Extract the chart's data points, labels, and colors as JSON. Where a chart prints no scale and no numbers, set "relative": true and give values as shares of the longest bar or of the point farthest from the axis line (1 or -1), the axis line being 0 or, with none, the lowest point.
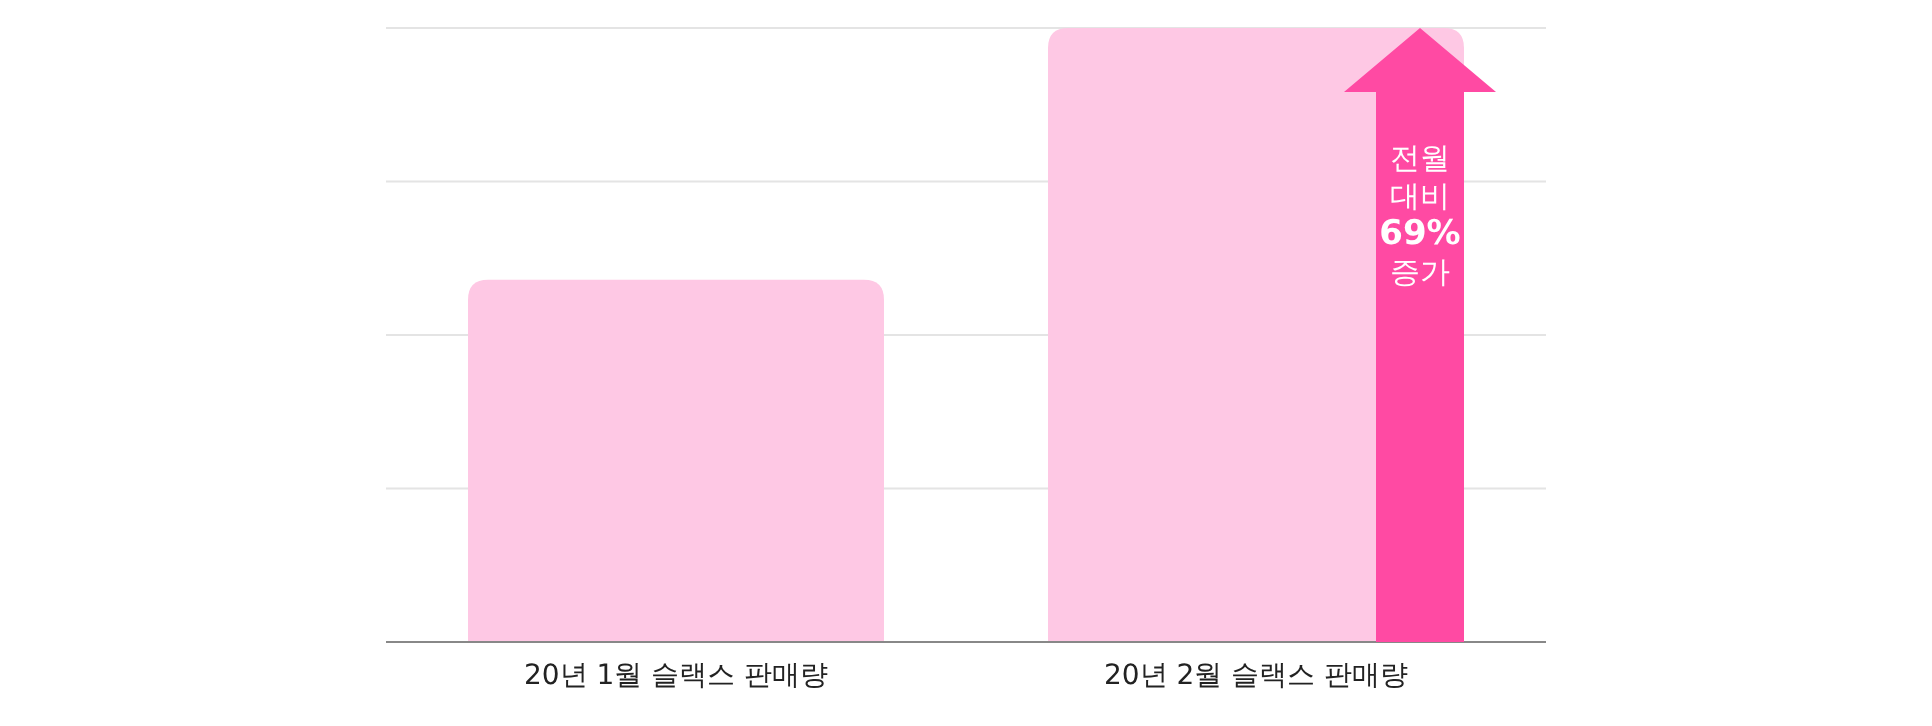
{
  "chart_data": {
    "type": "bar",
    "relative": true,
    "grid": "y",
    "categories": [
      "20년 1월 슬랙스 판매량",
      "20년 2월 슬랙스 판매량"
    ],
    "values": [
      0.59,
      1
    ],
    "color": "#fec8e4",
    "annotations": [
      "전월 대비 69% 증가"
    ]
  }
}
